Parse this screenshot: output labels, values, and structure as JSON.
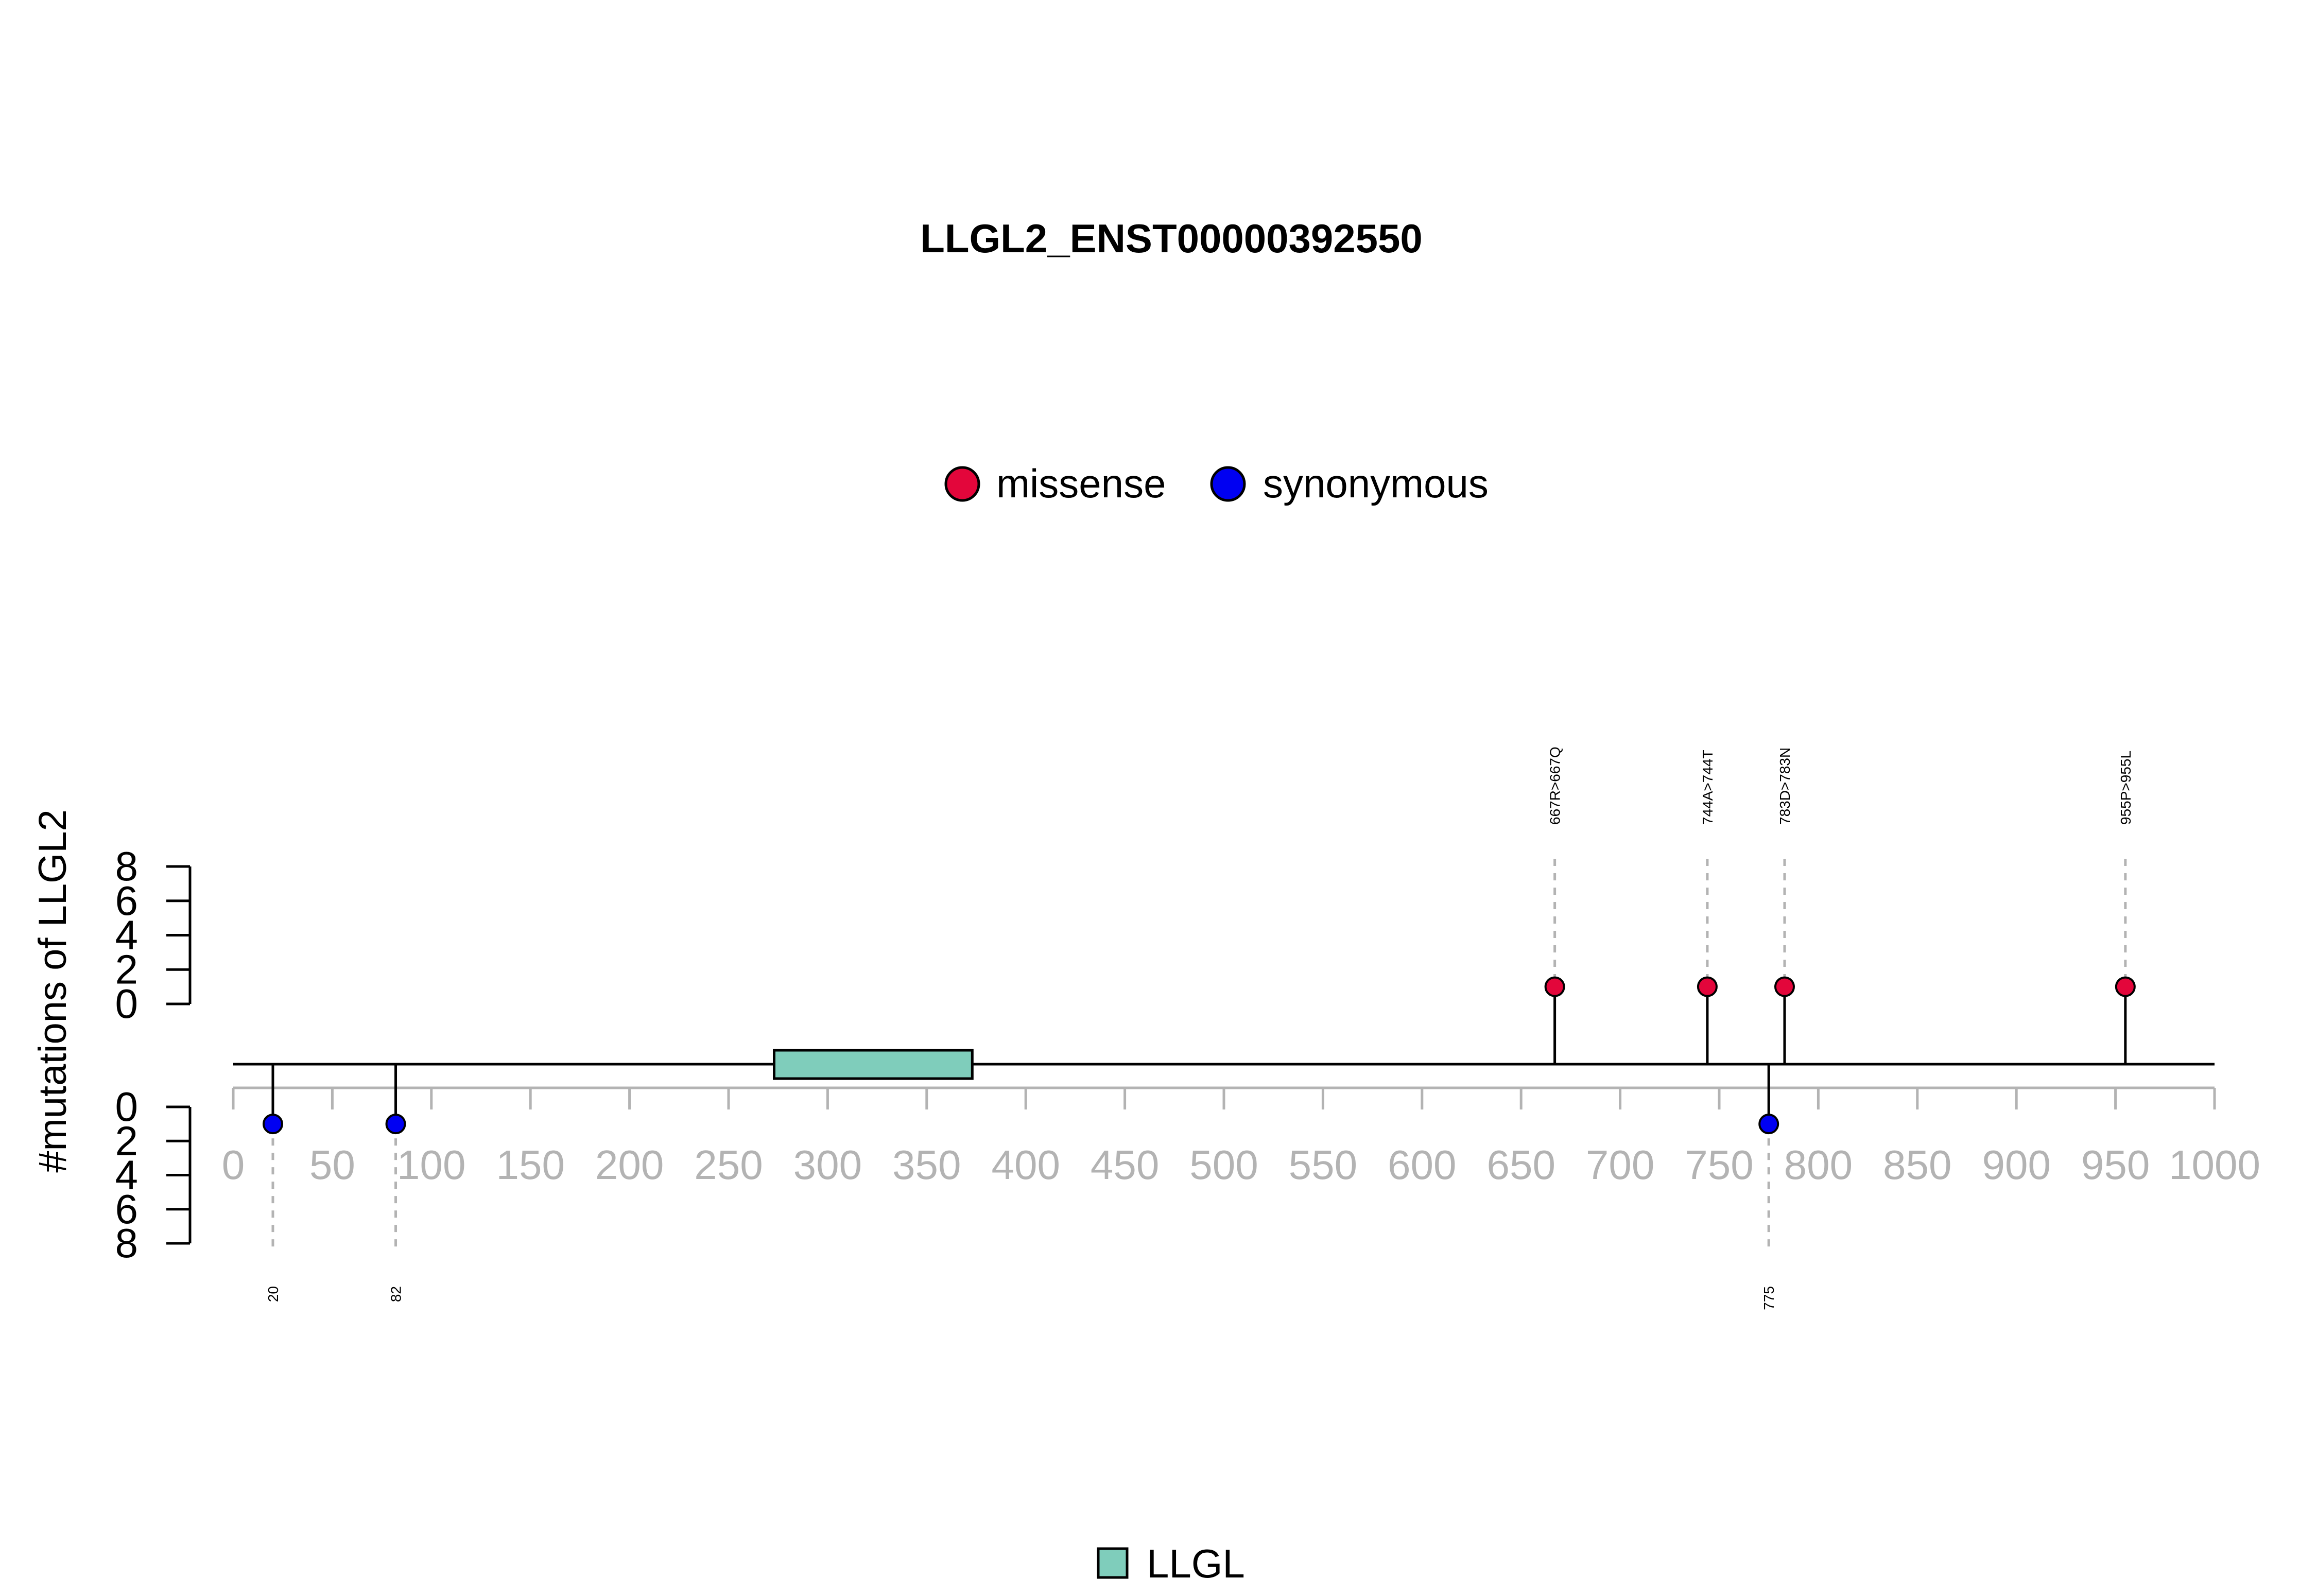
{
  "chart_data": {
    "type": "lollipop",
    "title": "LLGL2_ENST00000392550",
    "ylabel": "#mutations of LLGL2",
    "xlim": [
      0,
      1000
    ],
    "x_ticks": [
      0,
      50,
      100,
      150,
      200,
      250,
      300,
      350,
      400,
      450,
      500,
      550,
      600,
      650,
      700,
      750,
      800,
      850,
      900,
      950,
      1000
    ],
    "y_ticks": [
      0,
      2,
      4,
      6,
      8
    ],
    "ylim_top": [
      0,
      8
    ],
    "ylim_bottom": [
      0,
      8
    ],
    "legend": [
      {
        "label": "missense",
        "color": "#E3063B"
      },
      {
        "label": "synonymous",
        "color": "#0000F2"
      }
    ],
    "mutations_top": [
      {
        "position": 667,
        "label": "667R>667Q",
        "type": "missense",
        "count": 1
      },
      {
        "position": 744,
        "label": "744A>744T",
        "type": "missense",
        "count": 1
      },
      {
        "position": 783,
        "label": "783D>783N",
        "type": "missense",
        "count": 1
      },
      {
        "position": 955,
        "label": "955P>955L",
        "type": "missense",
        "count": 1
      }
    ],
    "mutations_bottom": [
      {
        "position": 20,
        "label": "20",
        "type": "synonymous",
        "count": 1
      },
      {
        "position": 82,
        "label": "82",
        "type": "synonymous",
        "count": 1
      },
      {
        "position": 775,
        "label": "775",
        "type": "synonymous",
        "count": 1
      }
    ],
    "domains": [
      {
        "name": "LLGL",
        "start": 273,
        "end": 373,
        "color": "#7FCDBB"
      }
    ],
    "domain_legend": [
      {
        "label": "LLGL",
        "color": "#7FCDBB"
      }
    ]
  }
}
